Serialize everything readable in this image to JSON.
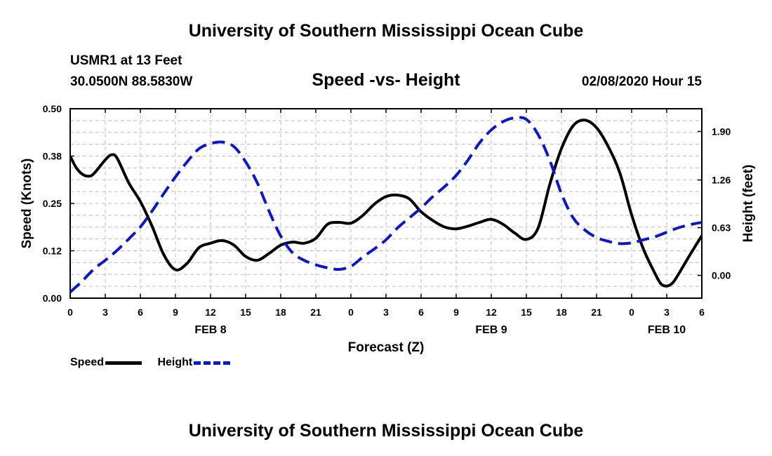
{
  "header": {
    "title": "University of Southern Mississippi Ocean Cube",
    "station": "USMR1 at 13 Feet",
    "coords": "30.0500N 88.5830W",
    "subtitle": "Speed -vs- Height",
    "datetime": "02/08/2020 Hour 15"
  },
  "footer": {
    "title": "University of Southern Mississippi Ocean Cube"
  },
  "legend": {
    "speed_label": "Speed",
    "height_label": "Height"
  },
  "colors": {
    "speed": "#000000",
    "height": "#0a18c8",
    "grid": "#bdbdbd"
  },
  "chart_data": {
    "type": "line",
    "title": "Speed -vs- Height",
    "xlabel": "Forecast (Z)",
    "ylabel": "Speed (Knots)",
    "y2label": "Height (feet)",
    "grid": true,
    "legend_position": "bottom-left",
    "xlim": [
      0,
      54
    ],
    "ylim": [
      0,
      0.5
    ],
    "y2lim": [
      -0.3,
      2.2
    ],
    "x_ticks": [
      0,
      3,
      6,
      9,
      12,
      15,
      18,
      21,
      24,
      27,
      30,
      33,
      36,
      39,
      42,
      45,
      48,
      51,
      54
    ],
    "x_tick_labels": [
      "0",
      "3",
      "6",
      "9",
      "12",
      "15",
      "18",
      "21",
      "0",
      "3",
      "6",
      "9",
      "12",
      "15",
      "18",
      "21",
      "0",
      "3",
      "6"
    ],
    "date_labels": [
      {
        "x": 12,
        "label": "FEB 8"
      },
      {
        "x": 36,
        "label": "FEB 9"
      },
      {
        "x": 51,
        "label": "FEB 10"
      }
    ],
    "y_ticks": [
      0.0,
      0.125,
      0.25,
      0.375,
      0.5
    ],
    "y_tick_labels": [
      "0.00",
      "0.12",
      "0.25",
      "0.38",
      "0.50"
    ],
    "y2_ticks": [
      0.0,
      0.63,
      1.26,
      1.9
    ],
    "y2_tick_labels": [
      "0.00",
      "0.63",
      "1.26",
      "1.90"
    ],
    "series": [
      {
        "name": "Speed",
        "axis": "left",
        "style": "solid",
        "points": [
          [
            0,
            0.375
          ],
          [
            0.5,
            0.345
          ],
          [
            1,
            0.328
          ],
          [
            1.5,
            0.322
          ],
          [
            2,
            0.328
          ],
          [
            3,
            0.365
          ],
          [
            3.5,
            0.378
          ],
          [
            4,
            0.37
          ],
          [
            5,
            0.305
          ],
          [
            6,
            0.255
          ],
          [
            7,
            0.19
          ],
          [
            8,
            0.115
          ],
          [
            9,
            0.075
          ],
          [
            10,
            0.092
          ],
          [
            11,
            0.133
          ],
          [
            12,
            0.145
          ],
          [
            13,
            0.152
          ],
          [
            14,
            0.14
          ],
          [
            15,
            0.11
          ],
          [
            16,
            0.1
          ],
          [
            17,
            0.118
          ],
          [
            18,
            0.14
          ],
          [
            19,
            0.148
          ],
          [
            20,
            0.145
          ],
          [
            21,
            0.158
          ],
          [
            22,
            0.195
          ],
          [
            23,
            0.2
          ],
          [
            24,
            0.198
          ],
          [
            25,
            0.218
          ],
          [
            26,
            0.248
          ],
          [
            27,
            0.268
          ],
          [
            28,
            0.272
          ],
          [
            29,
            0.262
          ],
          [
            30,
            0.228
          ],
          [
            31,
            0.205
          ],
          [
            32,
            0.188
          ],
          [
            33,
            0.183
          ],
          [
            34,
            0.19
          ],
          [
            35,
            0.2
          ],
          [
            36,
            0.208
          ],
          [
            37,
            0.195
          ],
          [
            38,
            0.172
          ],
          [
            39,
            0.155
          ],
          [
            40,
            0.185
          ],
          [
            41,
            0.3
          ],
          [
            42,
            0.395
          ],
          [
            43,
            0.455
          ],
          [
            44,
            0.47
          ],
          [
            45,
            0.45
          ],
          [
            46,
            0.4
          ],
          [
            47,
            0.33
          ],
          [
            48,
            0.22
          ],
          [
            49,
            0.13
          ],
          [
            50,
            0.065
          ],
          [
            50.5,
            0.038
          ],
          [
            51,
            0.032
          ],
          [
            51.5,
            0.04
          ],
          [
            52,
            0.063
          ],
          [
            53,
            0.115
          ],
          [
            54,
            0.165
          ]
        ]
      },
      {
        "name": "Height",
        "axis": "right",
        "style": "dashed",
        "points": [
          [
            0,
            -0.22
          ],
          [
            1,
            -0.08
          ],
          [
            2,
            0.08
          ],
          [
            3,
            0.2
          ],
          [
            4,
            0.33
          ],
          [
            5,
            0.48
          ],
          [
            6,
            0.64
          ],
          [
            7,
            0.85
          ],
          [
            8,
            1.08
          ],
          [
            9,
            1.3
          ],
          [
            10,
            1.5
          ],
          [
            11,
            1.67
          ],
          [
            12,
            1.74
          ],
          [
            13,
            1.76
          ],
          [
            14,
            1.7
          ],
          [
            15,
            1.5
          ],
          [
            16,
            1.22
          ],
          [
            17,
            0.85
          ],
          [
            18,
            0.52
          ],
          [
            19,
            0.3
          ],
          [
            20,
            0.2
          ],
          [
            21,
            0.14
          ],
          [
            22,
            0.1
          ],
          [
            23,
            0.08
          ],
          [
            24,
            0.12
          ],
          [
            25,
            0.24
          ],
          [
            26,
            0.35
          ],
          [
            27,
            0.47
          ],
          [
            28,
            0.63
          ],
          [
            29,
            0.76
          ],
          [
            30,
            0.89
          ],
          [
            31,
            1.04
          ],
          [
            32,
            1.17
          ],
          [
            33,
            1.32
          ],
          [
            34,
            1.52
          ],
          [
            35,
            1.75
          ],
          [
            36,
            1.92
          ],
          [
            37,
            2.03
          ],
          [
            38,
            2.08
          ],
          [
            39,
            2.06
          ],
          [
            40,
            1.86
          ],
          [
            41,
            1.52
          ],
          [
            42,
            1.08
          ],
          [
            43,
            0.76
          ],
          [
            44,
            0.6
          ],
          [
            45,
            0.5
          ],
          [
            46,
            0.45
          ],
          [
            47,
            0.42
          ],
          [
            48,
            0.43
          ],
          [
            49,
            0.47
          ],
          [
            50,
            0.51
          ],
          [
            51,
            0.57
          ],
          [
            52,
            0.63
          ],
          [
            53,
            0.67
          ],
          [
            54,
            0.7
          ]
        ]
      }
    ]
  }
}
